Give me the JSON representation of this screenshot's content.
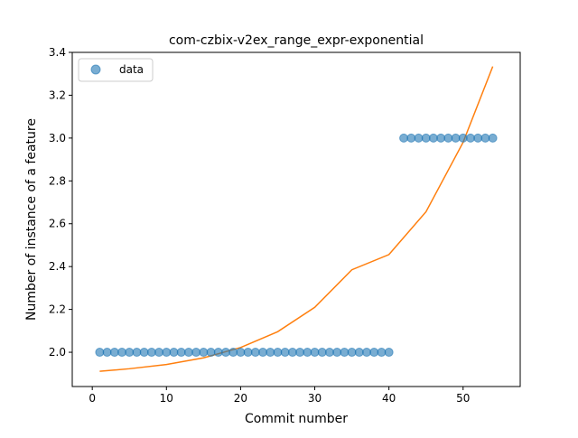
{
  "chart_data": {
    "type": "scatter",
    "title": "com-czbix-v2ex_range_expr-exponential",
    "xlabel": "Commit number",
    "ylabel": "Number of instance of a feature",
    "xlim": [
      -2.7,
      57.7
    ],
    "ylim": [
      1.84,
      3.4
    ],
    "xticks": [
      0,
      10,
      20,
      30,
      40,
      50
    ],
    "xtick_labels": [
      "0",
      "10",
      "20",
      "30",
      "40",
      "50"
    ],
    "yticks": [
      2.0,
      2.2,
      2.4,
      2.6,
      2.8,
      3.0,
      3.2,
      3.4
    ],
    "ytick_labels": [
      "2.0",
      "2.2",
      "2.4",
      "2.6",
      "2.8",
      "3.0",
      "3.2",
      "3.4"
    ],
    "grid": false,
    "legend": {
      "position": "top-left",
      "entries": [
        "data"
      ]
    },
    "series": [
      {
        "name": "data",
        "kind": "scatter",
        "color": "#1f77b4",
        "x": [
          1,
          2,
          3,
          4,
          5,
          6,
          7,
          8,
          9,
          10,
          11,
          12,
          13,
          14,
          15,
          16,
          17,
          18,
          19,
          20,
          21,
          22,
          23,
          24,
          25,
          26,
          27,
          28,
          29,
          30,
          31,
          32,
          33,
          34,
          35,
          36,
          37,
          38,
          39,
          40,
          42,
          43,
          44,
          45,
          46,
          47,
          48,
          49,
          50,
          51,
          52,
          53,
          54
        ],
        "y": [
          2,
          2,
          2,
          2,
          2,
          2,
          2,
          2,
          2,
          2,
          2,
          2,
          2,
          2,
          2,
          2,
          2,
          2,
          2,
          2,
          2,
          2,
          2,
          2,
          2,
          2,
          2,
          2,
          2,
          2,
          2,
          2,
          2,
          2,
          2,
          2,
          2,
          2,
          2,
          2,
          3,
          3,
          3,
          3,
          3,
          3,
          3,
          3,
          3,
          3,
          3,
          3,
          3
        ]
      },
      {
        "kind": "line",
        "color": "#ff7f0e",
        "x": [
          1,
          5,
          10,
          15,
          20,
          25,
          30,
          35,
          40,
          45,
          50,
          54
        ],
        "y": [
          1.911,
          1.923,
          1.943,
          1.974,
          2.022,
          2.096,
          2.21,
          2.385,
          2.456,
          2.656,
          2.98,
          3.334
        ]
      }
    ]
  }
}
